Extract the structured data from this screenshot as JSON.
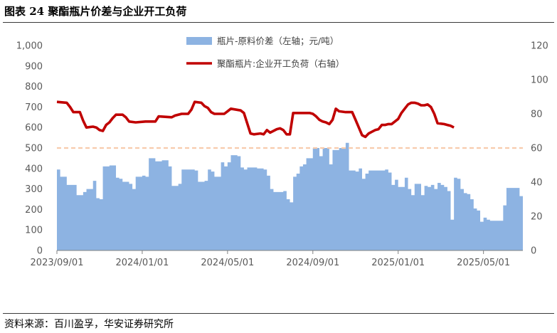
{
  "title": "图表 24 聚酯瓶片价差与企业开工负荷",
  "source": "资料来源：百川盈孚，华安证券研究所",
  "colors": {
    "spread": "#8db3e2",
    "load": "#c00000",
    "refline": "#f8cbad",
    "axis": "#595959"
  },
  "chart_data": {
    "type": "area+line",
    "x_ticks": [
      "2023/09/01",
      "2024/01/01",
      "2024/05/01",
      "2024/09/01",
      "2025/01/01",
      "2025/05/01"
    ],
    "y_left": {
      "ticks": [
        "0",
        "100",
        "200",
        "300",
        "400",
        "500",
        "600",
        "700",
        "800",
        "900",
        "1,000"
      ],
      "lim": [
        0,
        1000
      ]
    },
    "y_right": {
      "ticks": [
        "0",
        "20",
        "40",
        "60",
        "80",
        "100",
        "120"
      ],
      "lim": [
        0,
        120
      ]
    },
    "reference_line_right": 60,
    "series": [
      {
        "name": "瓶片-原料价差（左轴；元/吨）",
        "type": "area",
        "axis": "left",
        "points": [
          [
            0,
            395
          ],
          [
            1,
            360
          ],
          [
            2,
            360
          ],
          [
            3,
            320
          ],
          [
            5,
            320
          ],
          [
            6,
            270
          ],
          [
            8,
            285
          ],
          [
            9,
            300
          ],
          [
            10,
            300
          ],
          [
            11,
            340
          ],
          [
            12,
            255
          ],
          [
            13,
            250
          ],
          [
            14,
            410
          ],
          [
            16,
            415
          ],
          [
            17,
            415
          ],
          [
            18,
            355
          ],
          [
            19,
            350
          ],
          [
            20,
            335
          ],
          [
            22,
            325
          ],
          [
            23,
            300
          ],
          [
            24,
            360
          ],
          [
            26,
            365
          ],
          [
            27,
            360
          ],
          [
            28,
            450
          ],
          [
            30,
            435
          ],
          [
            32,
            440
          ],
          [
            33,
            440
          ],
          [
            34,
            410
          ],
          [
            35,
            315
          ],
          [
            37,
            325
          ],
          [
            38,
            395
          ],
          [
            41,
            395
          ],
          [
            42,
            390
          ],
          [
            43,
            335
          ],
          [
            45,
            340
          ],
          [
            46,
            395
          ],
          [
            47,
            385
          ],
          [
            48,
            360
          ],
          [
            50,
            430
          ],
          [
            51,
            410
          ],
          [
            52,
            430
          ],
          [
            53,
            465
          ],
          [
            55,
            460
          ],
          [
            56,
            405
          ],
          [
            57,
            395
          ],
          [
            58,
            405
          ],
          [
            61,
            400
          ],
          [
            63,
            395
          ],
          [
            64,
            365
          ],
          [
            65,
            300
          ],
          [
            66,
            285
          ],
          [
            68,
            285
          ],
          [
            69,
            290
          ],
          [
            70,
            250
          ],
          [
            71,
            235
          ],
          [
            72,
            360
          ],
          [
            73,
            375
          ],
          [
            74,
            410
          ],
          [
            75,
            420
          ],
          [
            76,
            450
          ],
          [
            78,
            500
          ],
          [
            80,
            460
          ],
          [
            81,
            500
          ],
          [
            83,
            420
          ],
          [
            84,
            490
          ],
          [
            86,
            500
          ],
          [
            88,
            525
          ],
          [
            89,
            390
          ],
          [
            91,
            385
          ],
          [
            92,
            400
          ],
          [
            93,
            350
          ],
          [
            94,
            375
          ],
          [
            95,
            390
          ],
          [
            98,
            390
          ],
          [
            100,
            395
          ],
          [
            101,
            380
          ],
          [
            102,
            320
          ],
          [
            103,
            345
          ],
          [
            104,
            310
          ],
          [
            106,
            355
          ],
          [
            107,
            300
          ],
          [
            108,
            270
          ],
          [
            109,
            325
          ],
          [
            110,
            325
          ],
          [
            111,
            270
          ],
          [
            112,
            315
          ],
          [
            113,
            310
          ],
          [
            114,
            320
          ],
          [
            115,
            300
          ],
          [
            116,
            330
          ],
          [
            117,
            320
          ],
          [
            118,
            310
          ],
          [
            119,
            290
          ],
          [
            120,
            150
          ],
          [
            121,
            355
          ],
          [
            122,
            350
          ],
          [
            123,
            300
          ],
          [
            124,
            280
          ],
          [
            125,
            275
          ],
          [
            126,
            250
          ],
          [
            127,
            205
          ],
          [
            128,
            195
          ],
          [
            129,
            140
          ],
          [
            130,
            160
          ],
          [
            131,
            150
          ],
          [
            132,
            145
          ],
          [
            135,
            145
          ],
          [
            136,
            220
          ],
          [
            137,
            305
          ],
          [
            139,
            305
          ],
          [
            140,
            305
          ],
          [
            141,
            265
          ],
          [
            142,
            265
          ]
        ]
      },
      {
        "name": "聚酯瓶片:企业开工负荷（右轴）",
        "type": "line",
        "axis": "right",
        "points": [
          [
            0,
            87
          ],
          [
            3,
            86.5
          ],
          [
            4,
            84
          ],
          [
            5,
            81
          ],
          [
            7,
            81
          ],
          [
            8,
            76
          ],
          [
            9,
            72
          ],
          [
            11,
            72.5
          ],
          [
            12,
            72
          ],
          [
            13,
            70.5
          ],
          [
            14,
            70
          ],
          [
            15,
            73.5
          ],
          [
            16,
            75
          ],
          [
            17,
            77.5
          ],
          [
            18,
            79.5
          ],
          [
            20,
            79.5
          ],
          [
            21,
            78
          ],
          [
            22,
            75.5
          ],
          [
            24,
            75
          ],
          [
            27,
            75.5
          ],
          [
            30,
            75.5
          ],
          [
            31,
            78.5
          ],
          [
            35,
            78
          ],
          [
            36,
            79
          ],
          [
            38,
            80
          ],
          [
            40,
            80
          ],
          [
            41,
            82.5
          ],
          [
            42,
            87
          ],
          [
            44,
            86.5
          ],
          [
            45,
            84.5
          ],
          [
            46,
            83.5
          ],
          [
            47,
            81
          ],
          [
            48,
            80
          ],
          [
            51,
            80
          ],
          [
            52,
            81.5
          ],
          [
            53,
            83
          ],
          [
            56,
            82
          ],
          [
            57,
            80.5
          ],
          [
            58,
            74.5
          ],
          [
            59,
            68.5
          ],
          [
            60,
            68
          ],
          [
            62,
            68.5
          ],
          [
            63,
            68
          ],
          [
            64,
            70.5
          ],
          [
            65,
            69
          ],
          [
            67,
            71
          ],
          [
            68,
            71.5
          ],
          [
            69,
            70.5
          ],
          [
            70,
            68
          ],
          [
            71,
            68
          ],
          [
            72,
            80.5
          ],
          [
            77,
            80.5
          ],
          [
            78,
            80
          ],
          [
            79,
            78.5
          ],
          [
            80,
            76.5
          ],
          [
            81,
            75.5
          ],
          [
            82,
            75
          ],
          [
            83,
            74
          ],
          [
            84,
            76.5
          ],
          [
            85,
            83
          ],
          [
            86,
            81.5
          ],
          [
            88,
            81
          ],
          [
            90,
            81
          ],
          [
            91,
            76.5
          ],
          [
            92,
            72
          ],
          [
            93,
            67.5
          ],
          [
            94,
            66.5
          ],
          [
            95,
            68.5
          ],
          [
            96,
            69.5
          ],
          [
            97,
            70.5
          ],
          [
            98,
            71
          ],
          [
            99,
            73.5
          ],
          [
            100,
            73.5
          ],
          [
            101,
            74
          ],
          [
            102,
            74
          ],
          [
            103,
            75.5
          ],
          [
            104,
            77
          ],
          [
            105,
            80.5
          ],
          [
            106,
            83
          ],
          [
            107,
            85.5
          ],
          [
            108,
            86.5
          ],
          [
            109,
            86.5
          ],
          [
            110,
            86
          ],
          [
            111,
            85
          ],
          [
            112,
            85
          ],
          [
            113,
            85.5
          ],
          [
            114,
            84
          ],
          [
            115,
            80
          ],
          [
            116,
            74.5
          ],
          [
            118,
            74
          ],
          [
            119,
            73.5
          ],
          [
            120,
            73
          ],
          [
            121,
            72
          ]
        ]
      }
    ]
  }
}
